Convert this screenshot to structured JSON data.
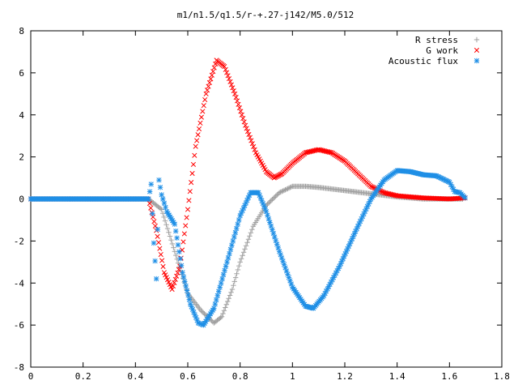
{
  "chart_data": {
    "type": "scatter",
    "title": "m1/n1.5/q1.5/r-+.27-j142/M5.0/512",
    "xlabel": "",
    "ylabel": "",
    "xlim": [
      0,
      1.8
    ],
    "ylim": [
      -8,
      8
    ],
    "xticks": [
      0,
      0.2,
      0.4,
      0.6,
      0.8,
      1,
      1.2,
      1.4,
      1.6,
      1.8
    ],
    "xtick_labels": [
      "0",
      "0.2",
      "0.4",
      "0.6",
      "0.8",
      "1",
      "1.2",
      "1.4",
      "1.6",
      "1.8"
    ],
    "yticks": [
      -8,
      -6,
      -4,
      -2,
      0,
      2,
      4,
      6,
      8
    ],
    "ytick_labels": [
      "-8",
      "-6",
      "-4",
      "-2",
      "0",
      "2",
      "4",
      "6",
      "8"
    ],
    "grid": false,
    "legend_position": "top-right",
    "series": [
      {
        "name": "R stress",
        "color": "#a0a0a0",
        "marker": "plus",
        "points": [
          [
            0.0,
            0
          ],
          [
            0.1,
            0
          ],
          [
            0.2,
            0
          ],
          [
            0.3,
            0
          ],
          [
            0.4,
            0
          ],
          [
            0.45,
            0
          ],
          [
            0.5,
            -0.5
          ],
          [
            0.55,
            -2.5
          ],
          [
            0.6,
            -4.5
          ],
          [
            0.65,
            -5.3
          ],
          [
            0.7,
            -5.9
          ],
          [
            0.73,
            -5.6
          ],
          [
            0.77,
            -4.3
          ],
          [
            0.8,
            -3.0
          ],
          [
            0.85,
            -1.3
          ],
          [
            0.9,
            -0.3
          ],
          [
            0.95,
            0.3
          ],
          [
            1.0,
            0.6
          ],
          [
            1.05,
            0.6
          ],
          [
            1.1,
            0.55
          ],
          [
            1.2,
            0.4
          ],
          [
            1.3,
            0.25
          ],
          [
            1.4,
            0.1
          ],
          [
            1.5,
            0.0
          ],
          [
            1.6,
            0.0
          ],
          [
            1.65,
            0.0
          ]
        ]
      },
      {
        "name": "G work",
        "color": "#ff0000",
        "marker": "cross",
        "points": [
          [
            0.0,
            0
          ],
          [
            0.1,
            0
          ],
          [
            0.2,
            0
          ],
          [
            0.3,
            0
          ],
          [
            0.4,
            0
          ],
          [
            0.45,
            0
          ],
          [
            0.48,
            -1.5
          ],
          [
            0.51,
            -3.5
          ],
          [
            0.54,
            -4.3
          ],
          [
            0.57,
            -3.2
          ],
          [
            0.6,
            -0.5
          ],
          [
            0.63,
            2.5
          ],
          [
            0.67,
            5.0
          ],
          [
            0.71,
            6.6
          ],
          [
            0.74,
            6.3
          ],
          [
            0.78,
            5.0
          ],
          [
            0.82,
            3.5
          ],
          [
            0.86,
            2.2
          ],
          [
            0.9,
            1.3
          ],
          [
            0.93,
            1.0
          ],
          [
            0.96,
            1.2
          ],
          [
            1.0,
            1.7
          ],
          [
            1.05,
            2.2
          ],
          [
            1.1,
            2.35
          ],
          [
            1.15,
            2.2
          ],
          [
            1.2,
            1.8
          ],
          [
            1.25,
            1.2
          ],
          [
            1.3,
            0.6
          ],
          [
            1.35,
            0.3
          ],
          [
            1.4,
            0.15
          ],
          [
            1.5,
            0.05
          ],
          [
            1.6,
            0.0
          ],
          [
            1.66,
            0.05
          ]
        ]
      },
      {
        "name": "Acoustic flux",
        "color": "#1f8fe6",
        "marker": "star",
        "points": [
          [
            0.0,
            0
          ],
          [
            0.1,
            0
          ],
          [
            0.2,
            0
          ],
          [
            0.3,
            0
          ],
          [
            0.4,
            0
          ],
          [
            0.45,
            0
          ],
          [
            0.46,
            0.7
          ],
          [
            0.47,
            -2.1
          ],
          [
            0.48,
            -3.8
          ],
          [
            0.49,
            0.9
          ],
          [
            0.5,
            0.2
          ],
          [
            0.52,
            -0.6
          ],
          [
            0.55,
            -1.2
          ],
          [
            0.58,
            -3.5
          ],
          [
            0.61,
            -5.0
          ],
          [
            0.64,
            -5.9
          ],
          [
            0.66,
            -6.0
          ],
          [
            0.7,
            -5.2
          ],
          [
            0.75,
            -3.0
          ],
          [
            0.8,
            -0.8
          ],
          [
            0.84,
            0.3
          ],
          [
            0.87,
            0.3
          ],
          [
            0.9,
            -0.6
          ],
          [
            0.95,
            -2.5
          ],
          [
            1.0,
            -4.2
          ],
          [
            1.05,
            -5.1
          ],
          [
            1.08,
            -5.2
          ],
          [
            1.12,
            -4.6
          ],
          [
            1.18,
            -3.2
          ],
          [
            1.25,
            -1.3
          ],
          [
            1.3,
            0.0
          ],
          [
            1.35,
            0.9
          ],
          [
            1.4,
            1.35
          ],
          [
            1.45,
            1.3
          ],
          [
            1.5,
            1.15
          ],
          [
            1.55,
            1.1
          ],
          [
            1.6,
            0.8
          ],
          [
            1.62,
            0.35
          ],
          [
            1.64,
            0.3
          ],
          [
            1.66,
            0.05
          ]
        ]
      }
    ]
  }
}
